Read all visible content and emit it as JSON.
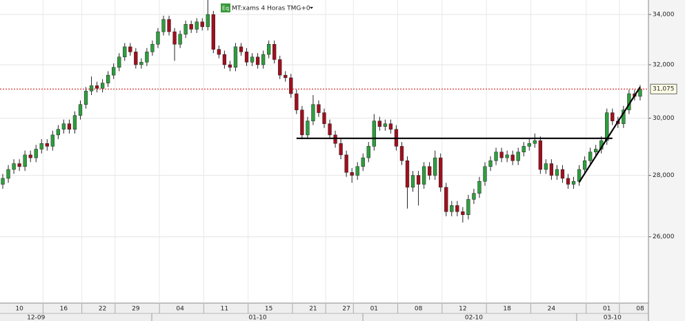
{
  "chart_data": {
    "type": "candlestick",
    "title": "MT:xams 4 Horas TMG+0",
    "icon": "Eq",
    "log_scale": true,
    "grid": true,
    "up_color": "#2e9e3e",
    "down_color": "#a0101e",
    "ylim": [
      24000,
      34600
    ],
    "yticks": [
      {
        "value": 26000,
        "label": "26,000"
      },
      {
        "value": 28000,
        "label": "28,000"
      },
      {
        "value": 30000,
        "label": "30,000"
      },
      {
        "value": 32000,
        "label": "32,000"
      },
      {
        "value": 34000,
        "label": "34,000"
      }
    ],
    "xlim": [
      -0.5,
      116.5
    ],
    "xticks": [
      {
        "value": 3,
        "label": "10"
      },
      {
        "value": 11,
        "label": "16"
      },
      {
        "value": 18,
        "label": "22"
      },
      {
        "value": 24,
        "label": "29"
      },
      {
        "value": 32,
        "label": "04"
      },
      {
        "value": 40,
        "label": "11"
      },
      {
        "value": 48,
        "label": "15"
      },
      {
        "value": 56,
        "label": "21"
      },
      {
        "value": 62,
        "label": "27"
      },
      {
        "value": 67,
        "label": "01"
      },
      {
        "value": 75,
        "label": "08"
      },
      {
        "value": 83,
        "label": "12"
      },
      {
        "value": 91,
        "label": "18"
      },
      {
        "value": 99,
        "label": "24"
      },
      {
        "value": 109,
        "label": "01"
      },
      {
        "value": 115,
        "label": "08"
      }
    ],
    "month_ticks": [
      {
        "value": 6,
        "label": "12-09"
      },
      {
        "value": 46,
        "label": "01-10"
      },
      {
        "value": 85,
        "label": "02-10"
      },
      {
        "value": 110,
        "label": "03-10"
      }
    ],
    "ref_line": {
      "value": 31075,
      "label": "31,075",
      "color": "#cc0000"
    },
    "trendlines": [
      {
        "x": [
          53,
          110
        ],
        "y": [
          29280,
          29280
        ]
      },
      {
        "x": [
          104,
          115
        ],
        "y": [
          27770,
          31150
        ]
      }
    ],
    "candles": [
      [
        27700,
        28050,
        27550,
        27900
      ],
      [
        27900,
        28350,
        27750,
        28200
      ],
      [
        28200,
        28550,
        28050,
        28400
      ],
      [
        28400,
        28550,
        28150,
        28300
      ],
      [
        28300,
        28850,
        28150,
        28700
      ],
      [
        28700,
        28850,
        28450,
        28600
      ],
      [
        28600,
        29050,
        28450,
        28900
      ],
      [
        28900,
        29250,
        28750,
        29100
      ],
      [
        29100,
        29250,
        28850,
        29000
      ],
      [
        29000,
        29550,
        28850,
        29400
      ],
      [
        29400,
        29750,
        29250,
        29600
      ],
      [
        29600,
        29950,
        29450,
        29800
      ],
      [
        29800,
        29950,
        29450,
        29600
      ],
      [
        29600,
        30250,
        29450,
        30100
      ],
      [
        30100,
        30650,
        29950,
        30500
      ],
      [
        30500,
        31150,
        30350,
        31000
      ],
      [
        31000,
        31550,
        30850,
        31200
      ],
      [
        31200,
        31350,
        30950,
        31100
      ],
      [
        31100,
        31450,
        30950,
        31300
      ],
      [
        31300,
        31750,
        31150,
        31600
      ],
      [
        31600,
        32050,
        31450,
        31900
      ],
      [
        31900,
        32450,
        31750,
        32300
      ],
      [
        32300,
        32850,
        32150,
        32700
      ],
      [
        32700,
        32850,
        32350,
        32500
      ],
      [
        32500,
        32650,
        31850,
        32000
      ],
      [
        32000,
        32250,
        31850,
        32100
      ],
      [
        32100,
        32650,
        31950,
        32500
      ],
      [
        32500,
        32950,
        32350,
        32800
      ],
      [
        32800,
        33450,
        32650,
        33300
      ],
      [
        33300,
        33950,
        33150,
        33800
      ],
      [
        33800,
        33950,
        33150,
        33300
      ],
      [
        33300,
        33450,
        32150,
        32800
      ],
      [
        32800,
        33350,
        32650,
        33200
      ],
      [
        33200,
        33750,
        33050,
        33600
      ],
      [
        33600,
        33750,
        33250,
        33400
      ],
      [
        33400,
        33850,
        33250,
        33700
      ],
      [
        33700,
        33850,
        33350,
        33500
      ],
      [
        33500,
        34600,
        33350,
        34000
      ],
      [
        34000,
        34150,
        32450,
        32600
      ],
      [
        32600,
        32750,
        32250,
        32400
      ],
      [
        32400,
        32550,
        31850,
        32000
      ],
      [
        32000,
        32150,
        31750,
        31900
      ],
      [
        31900,
        32850,
        31750,
        32700
      ],
      [
        32700,
        32850,
        32350,
        32500
      ],
      [
        32500,
        32650,
        31950,
        32100
      ],
      [
        32100,
        32450,
        31950,
        32300
      ],
      [
        32300,
        32450,
        31850,
        32000
      ],
      [
        32000,
        32550,
        31850,
        32400
      ],
      [
        32400,
        32950,
        32250,
        32800
      ],
      [
        32800,
        32950,
        32050,
        32200
      ],
      [
        32200,
        32350,
        31450,
        31600
      ],
      [
        31600,
        31750,
        31350,
        31500
      ],
      [
        31500,
        31650,
        30750,
        30900
      ],
      [
        30900,
        31050,
        30150,
        30300
      ],
      [
        30300,
        30450,
        29250,
        29400
      ],
      [
        29400,
        30050,
        29250,
        29900
      ],
      [
        29900,
        30850,
        29750,
        30500
      ],
      [
        30500,
        30650,
        30050,
        30200
      ],
      [
        30200,
        30350,
        29650,
        29800
      ],
      [
        29800,
        29950,
        29250,
        29400
      ],
      [
        29400,
        29550,
        28950,
        29100
      ],
      [
        29100,
        29250,
        28550,
        28700
      ],
      [
        28700,
        28850,
        27950,
        28100
      ],
      [
        28100,
        28250,
        27750,
        28000
      ],
      [
        28000,
        28450,
        27850,
        28300
      ],
      [
        28300,
        28750,
        28150,
        28600
      ],
      [
        28600,
        29150,
        28450,
        29000
      ],
      [
        29000,
        30150,
        28850,
        29900
      ],
      [
        29900,
        30050,
        29550,
        29700
      ],
      [
        29700,
        29950,
        29550,
        29800
      ],
      [
        29800,
        29950,
        29450,
        29600
      ],
      [
        29600,
        29750,
        28850,
        29000
      ],
      [
        29000,
        29150,
        28350,
        28500
      ],
      [
        28500,
        28650,
        26900,
        27600
      ],
      [
        27600,
        28150,
        27450,
        28000
      ],
      [
        28000,
        28150,
        27000,
        27700
      ],
      [
        27700,
        28450,
        27550,
        28300
      ],
      [
        28300,
        28450,
        27850,
        28000
      ],
      [
        28000,
        28850,
        27850,
        28600
      ],
      [
        28600,
        28750,
        27450,
        27600
      ],
      [
        27600,
        27750,
        26650,
        26800
      ],
      [
        26800,
        27150,
        26650,
        27000
      ],
      [
        27000,
        27150,
        26650,
        26800
      ],
      [
        26800,
        26950,
        26450,
        26700
      ],
      [
        26700,
        27350,
        26550,
        27200
      ],
      [
        27200,
        27550,
        27050,
        27400
      ],
      [
        27400,
        27950,
        27250,
        27800
      ],
      [
        27800,
        28450,
        27650,
        28300
      ],
      [
        28300,
        28650,
        28150,
        28500
      ],
      [
        28500,
        28950,
        28350,
        28800
      ],
      [
        28800,
        28950,
        28450,
        28600
      ],
      [
        28600,
        28850,
        28450,
        28700
      ],
      [
        28700,
        28850,
        28350,
        28500
      ],
      [
        28500,
        28950,
        28350,
        28800
      ],
      [
        28800,
        29150,
        28650,
        29000
      ],
      [
        29000,
        29250,
        28850,
        29100
      ],
      [
        29100,
        29450,
        28950,
        29200
      ],
      [
        29200,
        29350,
        28050,
        28200
      ],
      [
        28200,
        28550,
        28050,
        28400
      ],
      [
        28400,
        28550,
        27850,
        28000
      ],
      [
        28000,
        28350,
        27850,
        28200
      ],
      [
        28200,
        28350,
        27750,
        27900
      ],
      [
        27900,
        28050,
        27550,
        27700
      ],
      [
        27700,
        27950,
        27550,
        27800
      ],
      [
        27800,
        28350,
        27650,
        28200
      ],
      [
        28200,
        28650,
        28050,
        28500
      ],
      [
        28500,
        28950,
        28350,
        28800
      ],
      [
        28800,
        29050,
        28650,
        28900
      ],
      [
        28900,
        29350,
        28750,
        29200
      ],
      [
        29200,
        30350,
        29050,
        30200
      ],
      [
        30200,
        30350,
        29750,
        29900
      ],
      [
        29900,
        30050,
        29650,
        29800
      ],
      [
        29800,
        30450,
        29650,
        30300
      ],
      [
        30300,
        31050,
        30150,
        30900
      ],
      [
        30900,
        31050,
        30650,
        30800
      ],
      [
        30800,
        31225,
        30650,
        31075
      ]
    ]
  }
}
